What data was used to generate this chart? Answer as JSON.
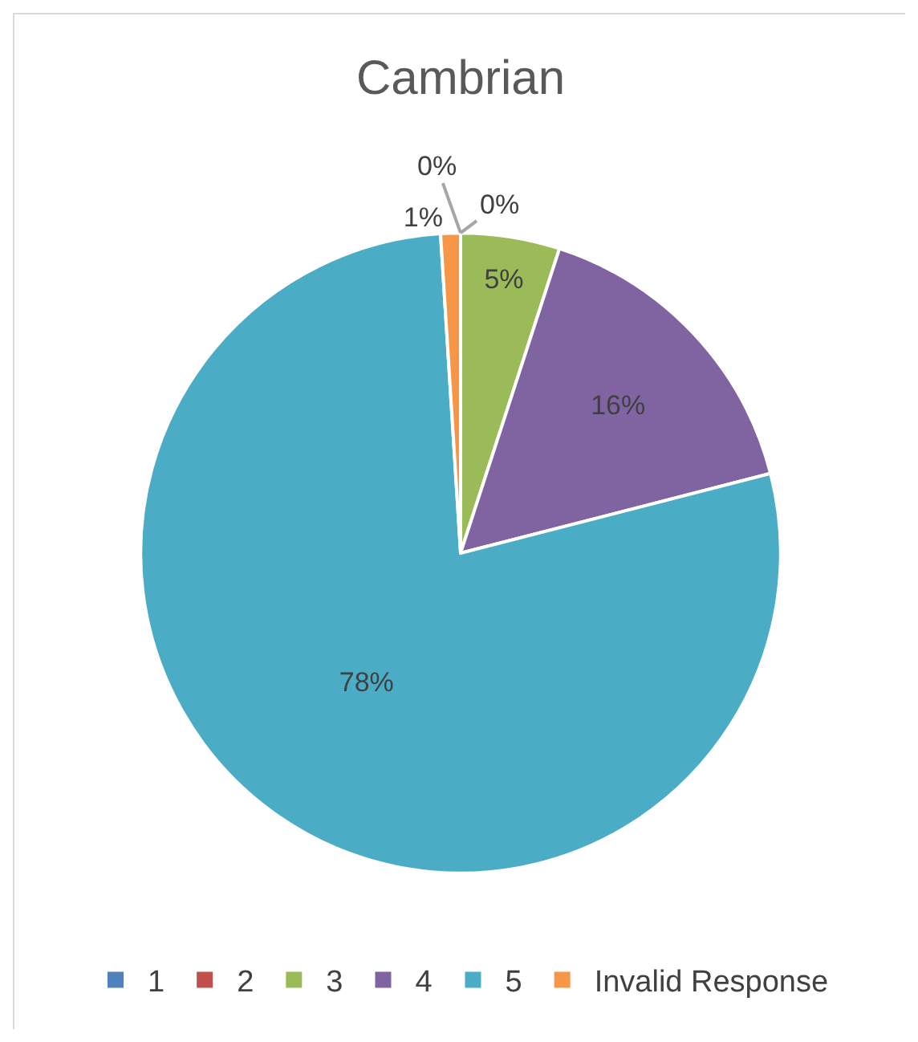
{
  "chart_data": {
    "type": "pie",
    "title": "Cambrian",
    "categories": [
      "1",
      "2",
      "3",
      "4",
      "5",
      "Invalid Response"
    ],
    "values": [
      0,
      0,
      5,
      16,
      78,
      1
    ],
    "colors": [
      "#4f81bd",
      "#c0504d",
      "#9bbb59",
      "#8064a2",
      "#4bacc6",
      "#f79646"
    ],
    "value_labels": [
      "0%",
      "0%",
      "5%",
      "16%",
      "78%",
      "1%"
    ],
    "legend": "bottom"
  }
}
